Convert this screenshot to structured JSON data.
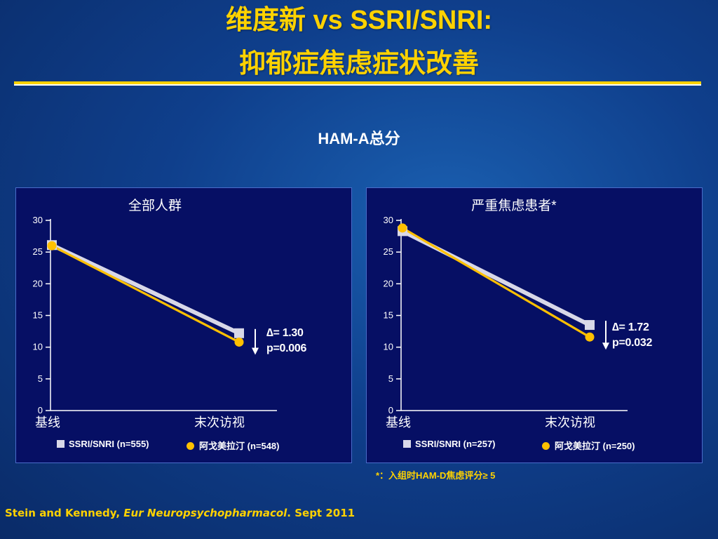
{
  "slide": {
    "title_line1": "维度新 vs SSRI/SNRI:",
    "title_line2": "抑郁症焦虑症状改善",
    "subtitle": "HAM-A总分",
    "footnote": "*：入组时HAM-D焦虑评分≥ 5",
    "citation": {
      "authors": "Stein and Kennedy, ",
      "journal": "Eur Neuropsychopharmacol",
      "date": ". Sept  2011"
    }
  },
  "colors": {
    "ssri": "#d8d8e8",
    "agomelatine": "#ffc000",
    "panel_bg": "#060f64",
    "title": "#ffd200"
  },
  "chart_data": [
    {
      "type": "line",
      "title": "全部人群",
      "categories": [
        "基线",
        "末次访视"
      ],
      "y_ticks": [
        0,
        5,
        10,
        15,
        20,
        25,
        30
      ],
      "ylim": [
        0,
        30
      ],
      "series": [
        {
          "name": "SSRI/SNRI (n=555)",
          "marker": "square",
          "values": [
            26.1,
            12.2
          ]
        },
        {
          "name": "阿戈美拉汀 (n=548)",
          "marker": "circle",
          "values": [
            26.0,
            10.8
          ]
        }
      ],
      "annotation": {
        "delta": "= 1.30",
        "p": "p=0.006"
      }
    },
    {
      "type": "line",
      "title": "严重焦虑患者*",
      "categories": [
        "基线",
        "末次访视"
      ],
      "y_ticks": [
        0,
        5,
        10,
        15,
        20,
        25,
        30
      ],
      "ylim": [
        0,
        30
      ],
      "series": [
        {
          "name": "SSRI/SNRI (n=257)",
          "marker": "square",
          "values": [
            28.3,
            13.5
          ]
        },
        {
          "name": "阿戈美拉汀 (n=250)",
          "marker": "circle",
          "values": [
            28.8,
            11.6
          ]
        }
      ],
      "annotation": {
        "delta": "= 1.72",
        "p": "p=0.032"
      }
    }
  ]
}
